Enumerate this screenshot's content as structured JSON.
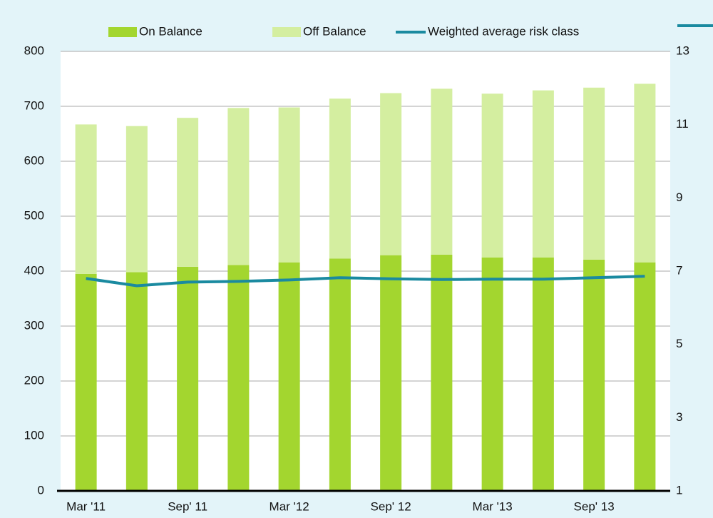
{
  "chart_data": {
    "type": "bar+line",
    "categories": [
      "Mar '11",
      null,
      "Sep' 11",
      null,
      "Mar '12",
      null,
      "Sep' 12",
      null,
      "Mar '13",
      null,
      "Sep' 13",
      null
    ],
    "series": [
      {
        "name": "On Balance",
        "color": "#a3d62f",
        "values": [
          395,
          398,
          408,
          411,
          416,
          423,
          429,
          430,
          425,
          425,
          421,
          416
        ]
      },
      {
        "name": "Off Balance",
        "color": "#d4eea0",
        "values": [
          272,
          266,
          271,
          286,
          282,
          291,
          295,
          302,
          298,
          304,
          313,
          325
        ]
      },
      {
        "name": "Weighted average risk class",
        "color": "#1a8aa0",
        "axis": "y2",
        "type": "line",
        "values": [
          6.8,
          6.6,
          6.7,
          6.72,
          6.76,
          6.82,
          6.79,
          6.77,
          6.78,
          6.78,
          6.82,
          6.86
        ]
      }
    ],
    "stacked": true,
    "ylim": [
      0,
      800
    ],
    "yticks": [
      0,
      100,
      200,
      300,
      400,
      500,
      600,
      700,
      800
    ],
    "y2lim": [
      1,
      13
    ],
    "y2ticks": [
      1,
      3,
      5,
      7,
      9,
      11,
      13
    ],
    "grid": true,
    "legend": "top"
  }
}
